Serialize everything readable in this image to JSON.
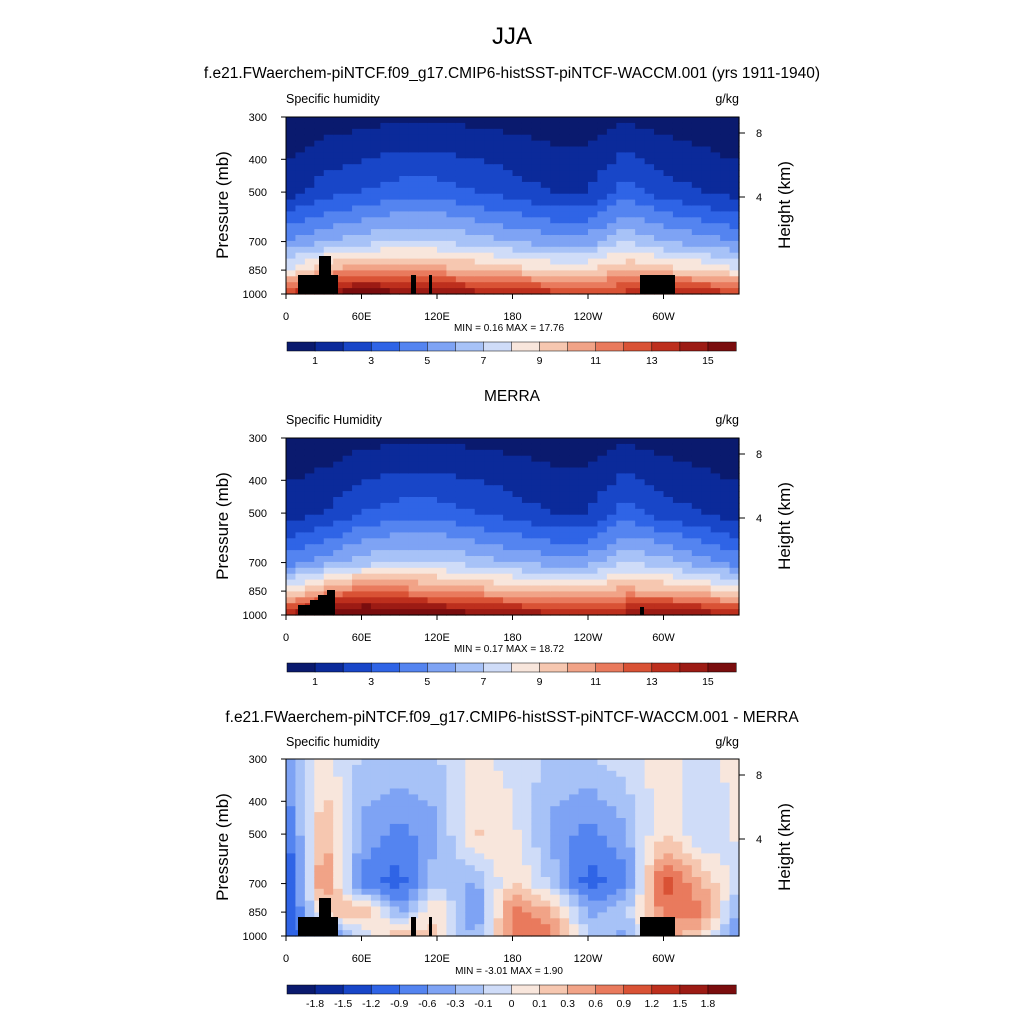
{
  "figure": {
    "title": "JJA",
    "top_title": "f.e21.FWaerchem-piNTCF.f09_g17.CMIP6-histSST-piNTCF-WACCM.001 (yrs 1911-1940)",
    "middle_title": "MERRA",
    "bottom_title": "f.e21.FWaerchem-piNTCF.f09_g17.CMIP6-histSST-piNTCF-WACCM.001 - MERRA"
  },
  "axes": {
    "ylabel": "Pressure (mb)",
    "ylabel_right": "Height (km)",
    "y_ticks": [
      "300",
      "400",
      "500",
      "700",
      "850",
      "1000"
    ],
    "y_right_ticks": [
      "8",
      "4"
    ],
    "x_ticks": [
      "0",
      "60E",
      "120E",
      "180",
      "120W",
      "60W"
    ]
  },
  "chart_data": [
    {
      "type": "heatmap",
      "panel": "model",
      "left_label": "Specific humidity",
      "units": "g/kg",
      "stats": "MIN =   0.16  MAX =   17.76",
      "min": 0.16,
      "max": 17.76,
      "x": [
        0,
        30,
        60,
        90,
        120,
        150,
        180,
        210,
        240,
        270,
        300,
        330,
        360
      ],
      "pressure_levels": [
        300,
        400,
        500,
        700,
        850,
        1000
      ],
      "colorbar_labels": [
        "1",
        "3",
        "5",
        "7",
        "9",
        "11",
        "13",
        "15"
      ],
      "colorbar_colors": [
        "#0a1a6e",
        "#0b2a9a",
        "#1846c8",
        "#2f64e6",
        "#5484f0",
        "#7ea3f4",
        "#a7c2f7",
        "#cfdcf8",
        "#f8e6dc",
        "#f6c7b0",
        "#f1a387",
        "#e97a5d",
        "#d95235",
        "#bd2f1d",
        "#9c1b14",
        "#7a0d0e"
      ],
      "ranges": {
        "cmin": 0,
        "cmax": 16,
        "surface": [
          13,
          15,
          16,
          15.5,
          15,
          14.5,
          14,
          13.5,
          13,
          13.5,
          14,
          14,
          13
        ],
        "p850": [
          8,
          10,
          11,
          11,
          10.5,
          10,
          9.5,
          9,
          9,
          10,
          9.5,
          9,
          8
        ],
        "p700": [
          5,
          6,
          6.5,
          7,
          7,
          6.5,
          6,
          5.5,
          5.5,
          7,
          6,
          5.5,
          5
        ],
        "p500": [
          1.5,
          2.5,
          3,
          3.5,
          3.5,
          3,
          2.5,
          2,
          2,
          3.5,
          2.5,
          2,
          1.5
        ],
        "p300": [
          0.2,
          0.4,
          0.6,
          0.8,
          0.8,
          0.7,
          0.6,
          0.4,
          0.4,
          0.8,
          0.5,
          0.3,
          0.2
        ]
      }
    },
    {
      "type": "heatmap",
      "panel": "merra",
      "left_label": "Specific Humidity",
      "units": "g/kg",
      "stats": "MIN =   0.17  MAX =   18.72",
      "min": 0.17,
      "max": 18.72,
      "x": [
        0,
        30,
        60,
        90,
        120,
        150,
        180,
        210,
        240,
        270,
        300,
        330,
        360
      ],
      "pressure_levels": [
        300,
        400,
        500,
        700,
        850,
        1000
      ],
      "colorbar_labels": [
        "1",
        "3",
        "5",
        "7",
        "9",
        "11",
        "13",
        "15"
      ],
      "colorbar_colors": [
        "#0a1a6e",
        "#0b2a9a",
        "#1846c8",
        "#2f64e6",
        "#5484f0",
        "#7ea3f4",
        "#a7c2f7",
        "#cfdcf8",
        "#f8e6dc",
        "#f6c7b0",
        "#f1a387",
        "#e97a5d",
        "#d95235",
        "#bd2f1d",
        "#9c1b14",
        "#7a0d0e"
      ],
      "ranges": {
        "cmin": 0,
        "cmax": 16,
        "surface": [
          14,
          16,
          17,
          16.5,
          16,
          15.5,
          15,
          14.5,
          14,
          14.5,
          15.5,
          15,
          14
        ],
        "p850": [
          8.5,
          10.5,
          12,
          11.5,
          11,
          10.5,
          10,
          9.5,
          9.5,
          10.5,
          10,
          9.5,
          8.5
        ],
        "p700": [
          4.5,
          5.5,
          6.5,
          7,
          7,
          6.5,
          6,
          5.5,
          5.5,
          7,
          6.5,
          5.5,
          4.5
        ],
        "p500": [
          1.5,
          2,
          3,
          3.5,
          3.5,
          3,
          2.5,
          2,
          2,
          3.5,
          2.5,
          2,
          1.5
        ],
        "p300": [
          0.2,
          0.3,
          0.6,
          0.8,
          0.8,
          0.7,
          0.6,
          0.4,
          0.4,
          0.8,
          0.5,
          0.3,
          0.2
        ]
      }
    },
    {
      "type": "heatmap",
      "panel": "difference",
      "left_label": "Specific humidity",
      "units": "g/kg",
      "stats": "MIN =  -3.01  MAX =    1.90",
      "min": -3.01,
      "max": 1.9,
      "x": [
        0,
        30,
        60,
        90,
        120,
        150,
        180,
        210,
        240,
        270,
        300,
        330,
        360
      ],
      "pressure_levels": [
        300,
        400,
        500,
        700,
        850,
        1000
      ],
      "colorbar_labels": [
        "-1.8",
        "-1.5",
        "-1.2",
        "-0.9",
        "-0.6",
        "-0.3",
        "-0.1",
        "0",
        "0.1",
        "0.3",
        "0.6",
        "0.9",
        "1.2",
        "1.5",
        "1.8"
      ],
      "colorbar_colors": [
        "#0a1a6e",
        "#0b2a9a",
        "#1846c8",
        "#2f64e6",
        "#5484f0",
        "#7ea3f4",
        "#a7c2f7",
        "#cfdcf8",
        "#f8e6dc",
        "#f6c7b0",
        "#f1a387",
        "#e97a5d",
        "#d95235",
        "#bd2f1d",
        "#9c1b14",
        "#7a0d0e"
      ],
      "ranges": {
        "cmin": -2.1,
        "cmax": 2.1,
        "surface": [
          -1.2,
          -0.9,
          -0.3,
          0.6,
          0.3,
          -0.6,
          1.0,
          0.9,
          -0.3,
          -0.6,
          0.6,
          0.3,
          -0.9
        ],
        "p850": [
          -1.5,
          0.3,
          0.6,
          -0.6,
          0.3,
          -0.9,
          0.9,
          0.6,
          -0.6,
          -0.3,
          0.9,
          0.9,
          -0.6
        ],
        "p700": [
          -1.5,
          0.9,
          -0.9,
          -1.2,
          -0.3,
          -0.6,
          0.3,
          -0.3,
          -1.2,
          -0.9,
          1.2,
          0.6,
          -0.3
        ],
        "p500": [
          -1.2,
          0.6,
          -0.6,
          -0.9,
          -0.6,
          0.3,
          0.1,
          -0.6,
          -0.9,
          -0.6,
          0.3,
          -0.3,
          0.1
        ],
        "p300": [
          -0.6,
          0.1,
          -0.3,
          -0.3,
          -0.3,
          0.1,
          -0.1,
          -0.3,
          -0.3,
          -0.1,
          0.1,
          -0.1,
          0.1
        ]
      }
    }
  ]
}
